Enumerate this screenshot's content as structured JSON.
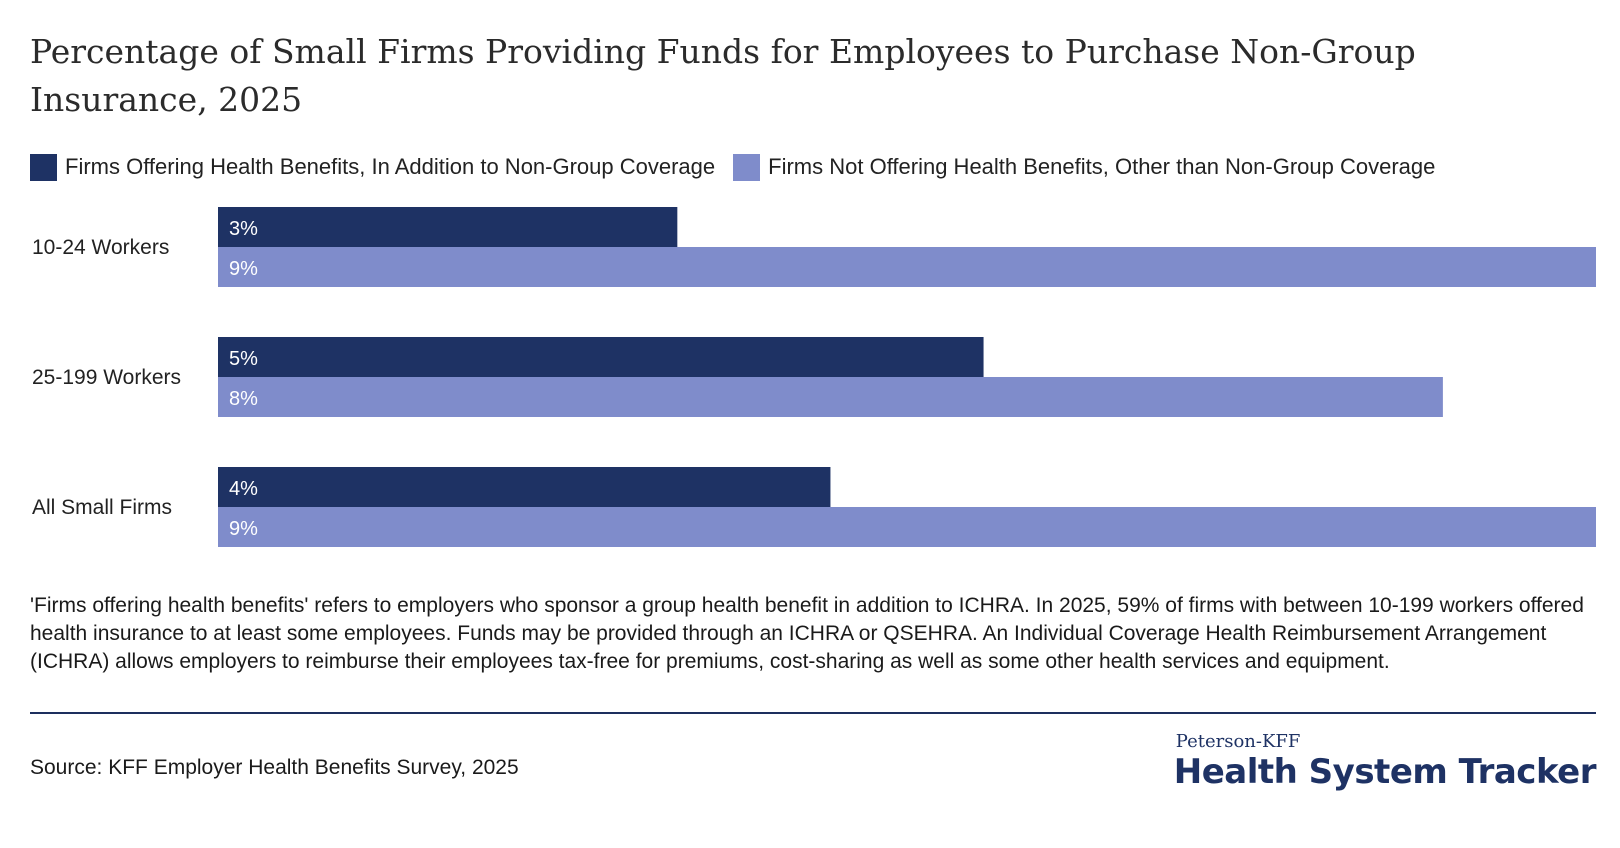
{
  "title": "Percentage of Small Firms Providing Funds for Employees to Purchase Non-Group Insurance, 2025",
  "colors": {
    "series1": "#1e3264",
    "series2": "#7f8ccb",
    "label_text": "#ffffff"
  },
  "legend": {
    "items": [
      {
        "label": "Firms Offering Health Benefits, In Addition to Non-Group Coverage"
      },
      {
        "label": "Firms Not Offering Health Benefits, Other than Non-Group Coverage"
      }
    ]
  },
  "chart_data": {
    "type": "bar",
    "orientation": "horizontal",
    "title": "Percentage of Small Firms Providing Funds for Employees to Purchase Non-Group Insurance, 2025",
    "categories": [
      "10-24 Workers",
      "25-199 Workers",
      "All Small Firms"
    ],
    "series": [
      {
        "name": "Firms Offering Health Benefits, In Addition to Non-Group Coverage",
        "values": [
          3,
          5,
          4
        ],
        "labels": [
          "3%",
          "5%",
          "4%"
        ]
      },
      {
        "name": "Firms Not Offering Health Benefits, Other than Non-Group Coverage",
        "values": [
          9,
          8,
          9
        ],
        "labels": [
          "9%",
          "8%",
          "9%"
        ]
      }
    ],
    "xlim": [
      0,
      9
    ],
    "xlabel": "",
    "ylabel": "",
    "grid": false,
    "legend_position": "top-left"
  },
  "note": "'Firms offering health benefits' refers to employers who sponsor a group health benefit in addition to ICHRA. In 2025, 59% of firms with between 10-199 workers offered health insurance to at least some employees. Funds may be provided through an ICHRA or QSEHRA. An Individual Coverage Health Reimbursement Arrangement (ICHRA) allows employers to reimburse their employees tax-free for premiums, cost-sharing as well as some other health services and equipment.",
  "source": "Source: KFF Employer Health Benefits Survey, 2025",
  "brand": {
    "small": "Peterson-KFF",
    "big": "Health System Tracker"
  }
}
